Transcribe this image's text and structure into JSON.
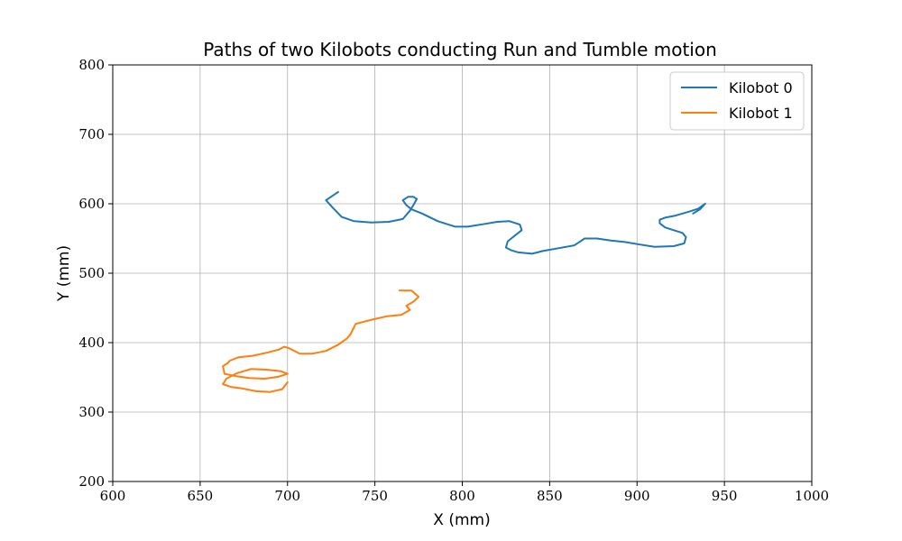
{
  "chart_data": {
    "type": "line",
    "title": "Paths of two Kilobots conducting Run and Tumble motion",
    "xlabel": "X (mm)",
    "ylabel": "Y (mm)",
    "xlim": [
      600,
      1000
    ],
    "ylim": [
      200,
      800
    ],
    "xticks": [
      600,
      650,
      700,
      750,
      800,
      850,
      900,
      950,
      1000
    ],
    "yticks": [
      200,
      300,
      400,
      500,
      600,
      700,
      800
    ],
    "xtick_labels": [
      "600",
      "650",
      "700",
      "750",
      "800",
      "850",
      "900",
      "950",
      "1000"
    ],
    "ytick_labels": [
      "200",
      "300",
      "400",
      "500",
      "600",
      "700",
      "800"
    ],
    "grid": true,
    "legend_position": "top-right",
    "series": [
      {
        "name": "Kilobot 0",
        "color": "#1f77b4",
        "x": [
          729,
          722,
          726,
          731,
          738,
          748,
          758,
          766,
          770,
          772,
          774,
          772,
          769,
          766,
          768,
          771,
          777,
          786,
          796,
          803,
          813,
          820,
          827,
          833,
          834,
          830,
          826,
          825,
          828,
          832,
          840,
          846,
          855,
          864,
          867,
          870,
          877,
          885,
          893,
          900,
          910,
          921,
          927,
          928,
          926,
          921,
          916,
          913,
          913,
          916,
          922,
          929,
          935,
          939,
          936,
          932
        ],
        "y": [
          617,
          605,
          594,
          581,
          575,
          573,
          574,
          578,
          590,
          598,
          607,
          610,
          610,
          605,
          598,
          592,
          586,
          575,
          567,
          567,
          571,
          574,
          575,
          570,
          562,
          554,
          546,
          537,
          533,
          530,
          528,
          532,
          536,
          540,
          545,
          550,
          550,
          547,
          545,
          542,
          538,
          539,
          543,
          552,
          558,
          562,
          566,
          572,
          577,
          580,
          583,
          588,
          593,
          600,
          592,
          586
        ]
      },
      {
        "name": "Kilobot 1",
        "color": "#ff7f0e",
        "x": [
          764,
          771,
          775,
          772,
          768,
          770,
          765,
          757,
          748,
          739,
          738,
          736,
          734,
          729,
          722,
          714,
          707,
          701,
          698,
          695,
          689,
          680,
          672,
          667,
          666,
          663,
          664,
          670,
          678,
          687,
          695,
          700,
          696,
          688,
          679,
          671,
          665,
          663,
          668,
          674,
          682,
          690,
          697,
          700
        ],
        "y": [
          475,
          475,
          466,
          459,
          453,
          447,
          440,
          438,
          433,
          427,
          422,
          412,
          406,
          397,
          388,
          384,
          384,
          392,
          394,
          390,
          386,
          381,
          379,
          374,
          371,
          366,
          355,
          352,
          349,
          348,
          351,
          355,
          359,
          361,
          362,
          356,
          348,
          340,
          336,
          334,
          330,
          329,
          333,
          343
        ]
      }
    ]
  }
}
